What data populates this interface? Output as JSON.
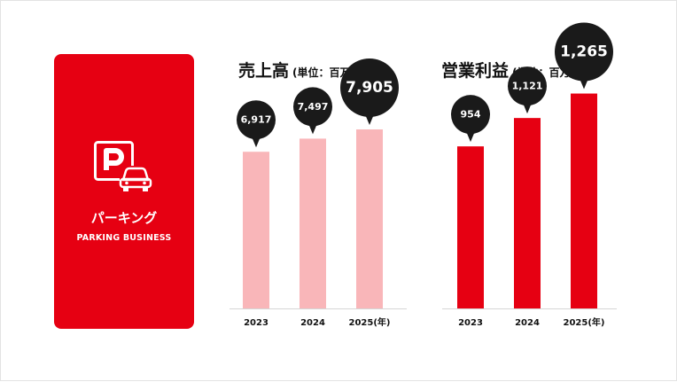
{
  "card": {
    "title": "パーキング",
    "subtitle": "PARKING BUSINESS",
    "icon": "parking-car-icon",
    "color": "#e60012"
  },
  "charts": [
    {
      "title": "売上高",
      "unit": "(単位：百万円)"
    },
    {
      "title": "営業利益",
      "unit": "(単位：百万円)"
    }
  ],
  "chart_data": [
    {
      "type": "bar",
      "title": "売上高",
      "unit": "(単位：百万円)",
      "categories": [
        "2023",
        "2024",
        "2025"
      ],
      "x_suffix": "(年)",
      "values": [
        6917,
        7497,
        7905
      ],
      "value_labels": [
        "6,917",
        "7,497",
        "7,905"
      ],
      "bar_color": "#f9b6b9",
      "ylim": [
        0,
        9000
      ]
    },
    {
      "type": "bar",
      "title": "営業利益",
      "unit": "(単位：百万円)",
      "categories": [
        "2023",
        "2024",
        "2025"
      ],
      "x_suffix": "(年)",
      "values": [
        954,
        1121,
        1265
      ],
      "value_labels": [
        "954",
        "1,121",
        "1,265"
      ],
      "bar_color": "#e60012",
      "ylim": [
        0,
        1200
      ]
    }
  ]
}
